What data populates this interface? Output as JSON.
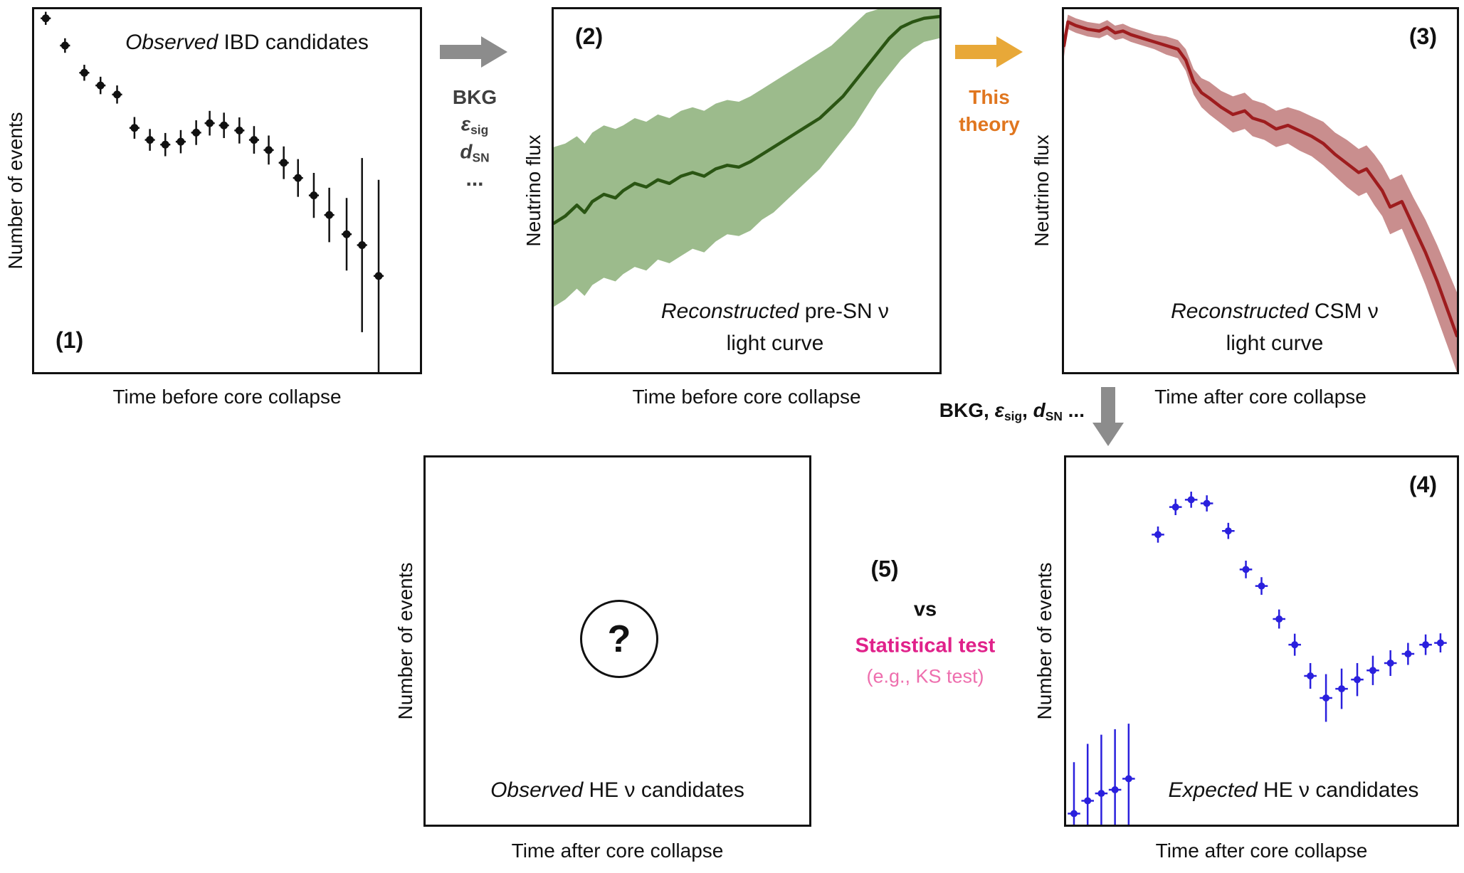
{
  "figure": {
    "background": "#ffffff"
  },
  "colors": {
    "ink": "#111111",
    "gray_arrow": "#8c8c8c",
    "gray_label": "#3f3f3f",
    "orange_arrow": "#e8a838",
    "orange_text": "#e0761f",
    "magenta": "#e0218a",
    "pink": "#ee6fae",
    "green_line": "#2a5513",
    "green_band": "#9cbb8c",
    "red_line": "#9e1c1e",
    "red_band": "#c98e8e",
    "blue": "#2a20dd"
  },
  "panels": {
    "p1": {
      "number": "(1)",
      "title_italic": "Observed",
      "title_rest": " IBD candidates",
      "xlabel": "Time before core collapse",
      "ylabel": "Number of events"
    },
    "p2": {
      "number": "(2)",
      "title_italic": "Reconstructed",
      "title_rest": " pre-SN ν",
      "title_line2": "light curve",
      "xlabel": "Time before core collapse",
      "ylabel": "Neutrino flux"
    },
    "p3": {
      "number": "(3)",
      "title_italic": "Reconstructed",
      "title_rest": " CSM ν",
      "title_line2": "light curve",
      "xlabel": "Time after core collapse",
      "ylabel": "Neutrino flux"
    },
    "p4": {
      "number": "(4)",
      "title_italic": "Expected",
      "title_rest": " HE ν candidates",
      "xlabel": "Time after core collapse",
      "ylabel": "Number of events"
    },
    "p5": {
      "title_italic": "Observed",
      "title_rest": " HE ν candidates",
      "xlabel": "Time after core collapse",
      "ylabel": "Number of events",
      "question_mark": "?"
    }
  },
  "step1_arrow": {
    "bkg": "BKG",
    "eps_base": "ε",
    "eps_sub": "sig",
    "d_base": "d",
    "d_sub": "SN",
    "dots": "..."
  },
  "step2_arrow": {
    "line1": "This",
    "line2": "theory"
  },
  "step3_arrow": {
    "prefix": "BKG, ",
    "eps_base": "ε",
    "eps_sub": "sig",
    "sep": ", ",
    "d_base": "d",
    "d_sub": "SN",
    "suffix": " ..."
  },
  "comparison": {
    "number": "(5)",
    "vs": "vs",
    "test_label": "Statistical test",
    "test_example": "(e.g., KS test)"
  },
  "chart_data": [
    {
      "id": "panel1",
      "type": "scatter",
      "title": "Observed IBD candidates",
      "xlabel": "Time before core collapse",
      "ylabel": "Number of events",
      "axis_ticks": "none (schematic)",
      "x_range": [
        0,
        1
      ],
      "y_range": [
        0,
        1
      ],
      "color": "#111111",
      "dot_r": 5.5,
      "err_width": 2.5,
      "xerr": 0.013,
      "points": [
        [
          0.03,
          0.975,
          0.018
        ],
        [
          0.08,
          0.9,
          0.02
        ],
        [
          0.13,
          0.825,
          0.022
        ],
        [
          0.172,
          0.79,
          0.024
        ],
        [
          0.215,
          0.765,
          0.025
        ],
        [
          0.26,
          0.673,
          0.03
        ],
        [
          0.3,
          0.64,
          0.03
        ],
        [
          0.34,
          0.627,
          0.032
        ],
        [
          0.38,
          0.635,
          0.032
        ],
        [
          0.42,
          0.66,
          0.034
        ],
        [
          0.455,
          0.686,
          0.034
        ],
        [
          0.492,
          0.68,
          0.035
        ],
        [
          0.532,
          0.666,
          0.036
        ],
        [
          0.57,
          0.64,
          0.038
        ],
        [
          0.608,
          0.612,
          0.04
        ],
        [
          0.647,
          0.577,
          0.045
        ],
        [
          0.684,
          0.535,
          0.052
        ],
        [
          0.725,
          0.487,
          0.062
        ],
        [
          0.765,
          0.433,
          0.075
        ],
        [
          0.81,
          0.38,
          0.1
        ],
        [
          0.85,
          0.35,
          0.24
        ],
        [
          0.893,
          0.265,
          0.265
        ]
      ]
    },
    {
      "id": "panel2",
      "type": "band-line",
      "title": "Reconstructed pre-SN ν light curve",
      "xlabel": "Time before core collapse",
      "ylabel": "Neutrino flux",
      "axis_ticks": "none (schematic)",
      "x_range": [
        0,
        1
      ],
      "y_range": [
        0,
        1
      ],
      "line_color": "#2a5513",
      "band_color": "#9cbb8c",
      "line_width": 4.5,
      "x": [
        0.0,
        0.03,
        0.06,
        0.08,
        0.1,
        0.13,
        0.16,
        0.18,
        0.21,
        0.24,
        0.27,
        0.3,
        0.33,
        0.36,
        0.39,
        0.42,
        0.45,
        0.48,
        0.51,
        0.54,
        0.57,
        0.6,
        0.63,
        0.66,
        0.69,
        0.72,
        0.75,
        0.78,
        0.81,
        0.84,
        0.87,
        0.9,
        0.93,
        0.96,
        1.0
      ],
      "y": [
        0.41,
        0.43,
        0.46,
        0.44,
        0.47,
        0.49,
        0.48,
        0.5,
        0.52,
        0.51,
        0.53,
        0.52,
        0.54,
        0.55,
        0.54,
        0.56,
        0.57,
        0.565,
        0.58,
        0.6,
        0.62,
        0.64,
        0.66,
        0.68,
        0.7,
        0.73,
        0.76,
        0.8,
        0.84,
        0.88,
        0.92,
        0.95,
        0.965,
        0.975,
        0.98
      ],
      "band_upper": [
        0.62,
        0.63,
        0.65,
        0.63,
        0.66,
        0.68,
        0.67,
        0.68,
        0.7,
        0.69,
        0.71,
        0.7,
        0.72,
        0.73,
        0.72,
        0.74,
        0.75,
        0.745,
        0.76,
        0.78,
        0.8,
        0.82,
        0.84,
        0.86,
        0.88,
        0.9,
        0.93,
        0.96,
        0.99,
        1.0,
        1.0,
        1.0,
        1.0,
        1.0,
        1.0
      ],
      "band_lower": [
        0.18,
        0.2,
        0.23,
        0.21,
        0.24,
        0.26,
        0.25,
        0.27,
        0.29,
        0.28,
        0.31,
        0.3,
        0.32,
        0.34,
        0.33,
        0.36,
        0.38,
        0.375,
        0.39,
        0.42,
        0.44,
        0.47,
        0.5,
        0.53,
        0.56,
        0.6,
        0.64,
        0.68,
        0.73,
        0.78,
        0.82,
        0.86,
        0.89,
        0.91,
        0.92
      ]
    },
    {
      "id": "panel3",
      "type": "band-line",
      "title": "Reconstructed CSM ν light curve",
      "xlabel": "Time after core collapse",
      "ylabel": "Neutrino flux",
      "axis_ticks": "none (schematic)",
      "x_range": [
        0,
        1
      ],
      "y_range": [
        0,
        1
      ],
      "line_color": "#9e1c1e",
      "band_color": "#c98e8e",
      "line_width": 4.5,
      "x": [
        0.0,
        0.01,
        0.03,
        0.06,
        0.09,
        0.11,
        0.13,
        0.15,
        0.17,
        0.2,
        0.23,
        0.26,
        0.29,
        0.31,
        0.33,
        0.35,
        0.37,
        0.4,
        0.43,
        0.46,
        0.48,
        0.51,
        0.54,
        0.57,
        0.6,
        0.63,
        0.66,
        0.69,
        0.72,
        0.75,
        0.77,
        0.79,
        0.81,
        0.83,
        0.86,
        0.89,
        0.92,
        0.95,
        1.0
      ],
      "y": [
        0.9,
        0.965,
        0.955,
        0.945,
        0.94,
        0.95,
        0.935,
        0.94,
        0.93,
        0.92,
        0.91,
        0.9,
        0.89,
        0.86,
        0.8,
        0.77,
        0.755,
        0.73,
        0.71,
        0.72,
        0.7,
        0.69,
        0.67,
        0.68,
        0.665,
        0.65,
        0.63,
        0.6,
        0.575,
        0.55,
        0.56,
        0.53,
        0.5,
        0.455,
        0.47,
        0.4,
        0.33,
        0.25,
        0.1
      ],
      "band_upper": [
        0.93,
        0.985,
        0.975,
        0.965,
        0.96,
        0.97,
        0.955,
        0.96,
        0.95,
        0.94,
        0.93,
        0.925,
        0.915,
        0.89,
        0.835,
        0.81,
        0.8,
        0.775,
        0.76,
        0.77,
        0.75,
        0.74,
        0.72,
        0.73,
        0.72,
        0.705,
        0.69,
        0.66,
        0.64,
        0.615,
        0.625,
        0.6,
        0.57,
        0.53,
        0.545,
        0.48,
        0.42,
        0.35,
        0.22
      ],
      "band_lower": [
        0.87,
        0.945,
        0.935,
        0.925,
        0.92,
        0.93,
        0.915,
        0.92,
        0.91,
        0.9,
        0.89,
        0.875,
        0.865,
        0.83,
        0.765,
        0.73,
        0.71,
        0.685,
        0.66,
        0.67,
        0.65,
        0.64,
        0.62,
        0.63,
        0.61,
        0.595,
        0.57,
        0.54,
        0.51,
        0.485,
        0.495,
        0.46,
        0.43,
        0.38,
        0.395,
        0.32,
        0.24,
        0.15,
        0.0
      ]
    },
    {
      "id": "panel4",
      "type": "scatter",
      "title": "Expected HE ν candidates",
      "xlabel": "Time after core collapse",
      "ylabel": "Number of events",
      "axis_ticks": "none (schematic)",
      "x_range": [
        0,
        1
      ],
      "y_range": [
        0,
        1
      ],
      "color": "#2a20dd",
      "dot_r": 5,
      "err_width": 2.5,
      "xerr": 0.016,
      "points": [
        [
          0.02,
          0.03,
          0.14
        ],
        [
          0.055,
          0.065,
          0.155
        ],
        [
          0.09,
          0.085,
          0.16
        ],
        [
          0.125,
          0.095,
          0.165
        ],
        [
          0.16,
          0.125,
          0.15
        ],
        [
          0.235,
          0.79,
          0.022
        ],
        [
          0.28,
          0.865,
          0.022
        ],
        [
          0.32,
          0.885,
          0.022
        ],
        [
          0.36,
          0.875,
          0.022
        ],
        [
          0.415,
          0.8,
          0.022
        ],
        [
          0.46,
          0.695,
          0.024
        ],
        [
          0.5,
          0.65,
          0.024
        ],
        [
          0.545,
          0.56,
          0.026
        ],
        [
          0.585,
          0.49,
          0.03
        ],
        [
          0.625,
          0.405,
          0.035
        ],
        [
          0.665,
          0.345,
          0.065
        ],
        [
          0.705,
          0.37,
          0.055
        ],
        [
          0.745,
          0.395,
          0.045
        ],
        [
          0.785,
          0.42,
          0.04
        ],
        [
          0.83,
          0.44,
          0.035
        ],
        [
          0.875,
          0.465,
          0.03
        ],
        [
          0.92,
          0.49,
          0.028
        ],
        [
          0.958,
          0.495,
          0.026
        ]
      ]
    },
    {
      "id": "panel5",
      "type": "empty",
      "title": "Observed HE ν candidates",
      "xlabel": "Time after core collapse",
      "ylabel": "Number of events",
      "axis_ticks": "none (schematic)",
      "annotation": "?"
    }
  ]
}
